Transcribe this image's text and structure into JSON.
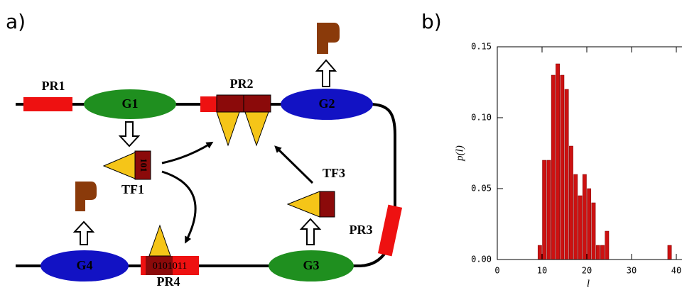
{
  "diagram": {
    "label": "a)",
    "promoters": [
      "PR1",
      "PR2",
      "PR3",
      "PR4"
    ],
    "genes": [
      "G1",
      "G2",
      "G3",
      "G4"
    ],
    "factors": [
      "TF1",
      "TF3"
    ],
    "codes": [
      "101",
      "0101011"
    ]
  },
  "chart_data": {
    "type": "histogram",
    "label": "b)",
    "xlabel": "l",
    "ylabel": "p(l)",
    "bins": [
      9,
      10,
      11,
      12,
      13,
      14,
      15,
      16,
      17,
      18,
      19,
      20,
      21,
      22,
      23,
      24,
      25,
      26,
      27,
      28,
      29,
      30,
      31,
      32,
      33,
      34,
      35,
      36,
      37,
      38,
      39
    ],
    "values": [
      0.01,
      0.07,
      0.07,
      0.13,
      0.138,
      0.13,
      0.12,
      0.08,
      0.06,
      0.045,
      0.06,
      0.05,
      0.04,
      0.01,
      0.01,
      0.02,
      0,
      0,
      0,
      0,
      0,
      0,
      0,
      0,
      0,
      0,
      0,
      0,
      0,
      0.01
    ],
    "color": "#cc1111",
    "xlim": [
      0,
      50
    ],
    "xticks": [
      0,
      10,
      20,
      30,
      40
    ],
    "ylim": [
      0,
      0.15
    ],
    "yticks": [
      {
        "value": 0,
        "label": "0.00"
      },
      0.05,
      {
        "value": 0.1,
        "label": "0.10"
      },
      0.15
    ]
  }
}
